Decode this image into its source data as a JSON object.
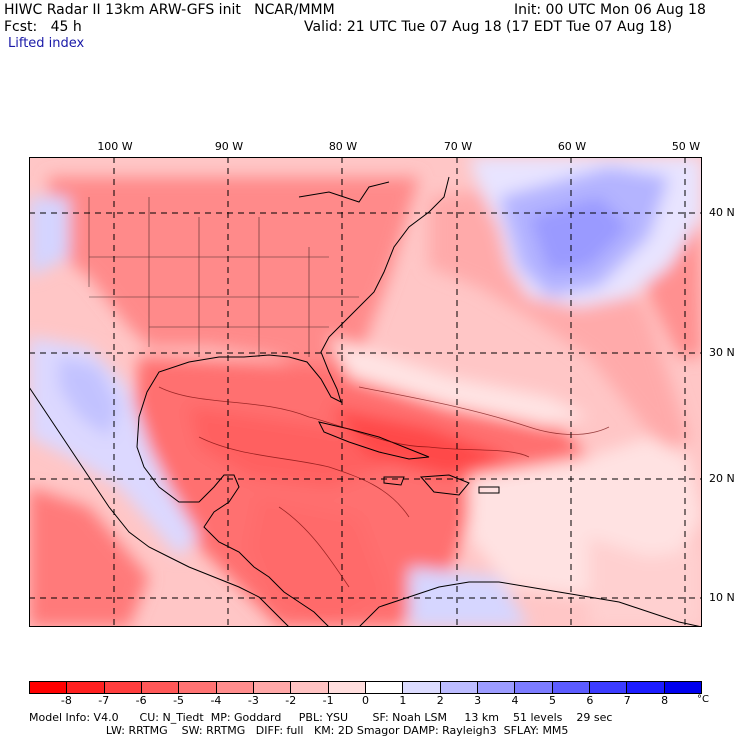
{
  "header": {
    "line1_left": "HIWC Radar II 13km ARW-GFS init   NCAR/MMM",
    "line1_right": "Init: 00 UTC Mon 06 Aug 18",
    "line2_left": "Fcst:   45 h",
    "line2_right": "Valid: 21 UTC Tue 07 Aug 18 (17 EDT Tue 07 Aug 18)",
    "field": "Lifted index"
  },
  "lon_labels": [
    "100 W",
    "90 W",
    "80 W",
    "70 W",
    "60 W",
    "50 W"
  ],
  "lat_labels": [
    "40 N",
    "30 N",
    "20 N",
    "10 N"
  ],
  "colorbar": {
    "colors": [
      "#ff0000",
      "#ff2020",
      "#ff3d3d",
      "#ff5858",
      "#ff7373",
      "#ff8d8d",
      "#ffa8a8",
      "#ffc3c3",
      "#ffdede",
      "#ffffff",
      "#dcdcff",
      "#bcbcff",
      "#9c9cff",
      "#7c7cff",
      "#5c5cff",
      "#3c3cff",
      "#1c1cff",
      "#0000ee"
    ],
    "ticks": [
      "-8",
      "-7",
      "-6",
      "-5",
      "-4",
      "-3",
      "-2",
      "-1",
      "0",
      "1",
      "2",
      "3",
      "4",
      "5",
      "6",
      "7",
      "8"
    ],
    "unit": "°C"
  },
  "model_info": {
    "line1": "Model Info: V4.0      CU: N_Tiedt  MP: Goddard     PBL: YSU       SF: Noah LSM     13 km    51 levels    29 sec",
    "line2": "                      LW: RRTMG    SW: RRTMG   DIFF: full   KM: 2D Smagor DAMP: Rayleigh3  SFLAY: MM5"
  }
}
